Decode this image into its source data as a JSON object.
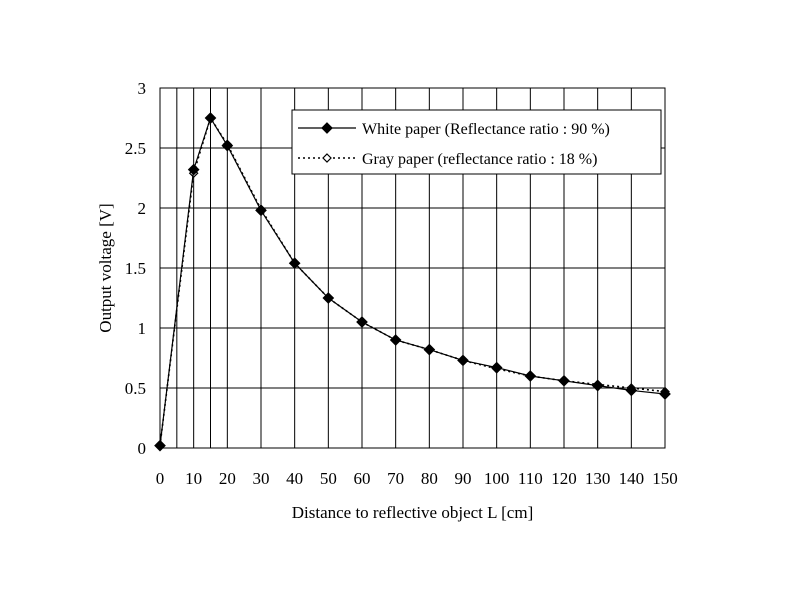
{
  "chart_data": {
    "type": "line",
    "title": "",
    "xlabel": "Distance to reflective object L [cm]",
    "ylabel": "Output voltage [V]",
    "xlim": [
      0,
      150
    ],
    "ylim": [
      0,
      3
    ],
    "x_ticks": [
      0,
      10,
      20,
      30,
      40,
      50,
      60,
      70,
      80,
      90,
      100,
      110,
      120,
      130,
      140,
      150
    ],
    "y_ticks": [
      0,
      0.5,
      1,
      1.5,
      2,
      2.5,
      3
    ],
    "y_tick_labels": [
      "0",
      "0.5",
      "1",
      "1.5",
      "2",
      "2.5",
      "3"
    ],
    "x_gridlines": [
      0,
      5,
      10,
      15,
      20,
      30,
      40,
      50,
      60,
      70,
      80,
      90,
      100,
      110,
      120,
      130,
      140,
      150
    ],
    "grid": true,
    "legend_position": "top-right",
    "series": [
      {
        "name": "White paper (Reflectance ratio : 90 %)",
        "line_style": "solid",
        "marker": "filled-diamond",
        "color": "#000000",
        "x": [
          0,
          10,
          15,
          20,
          30,
          40,
          50,
          60,
          70,
          80,
          90,
          100,
          110,
          120,
          130,
          140,
          150
        ],
        "values": [
          0.02,
          2.32,
          2.75,
          2.52,
          1.98,
          1.54,
          1.25,
          1.05,
          0.9,
          0.82,
          0.73,
          0.67,
          0.6,
          0.56,
          0.52,
          0.48,
          0.45
        ]
      },
      {
        "name": "Gray paper (reflectance ratio : 18 %)",
        "line_style": "dotted",
        "marker": "open-diamond",
        "color": "#000000",
        "x": [
          0,
          10,
          15,
          20,
          30,
          40,
          50,
          60,
          70,
          80,
          90,
          100,
          110,
          120,
          130,
          140,
          150
        ],
        "values": [
          0.02,
          2.29,
          2.75,
          2.53,
          1.99,
          1.54,
          1.25,
          1.05,
          0.9,
          0.82,
          0.73,
          0.66,
          0.6,
          0.56,
          0.53,
          0.5,
          0.47
        ]
      }
    ]
  }
}
